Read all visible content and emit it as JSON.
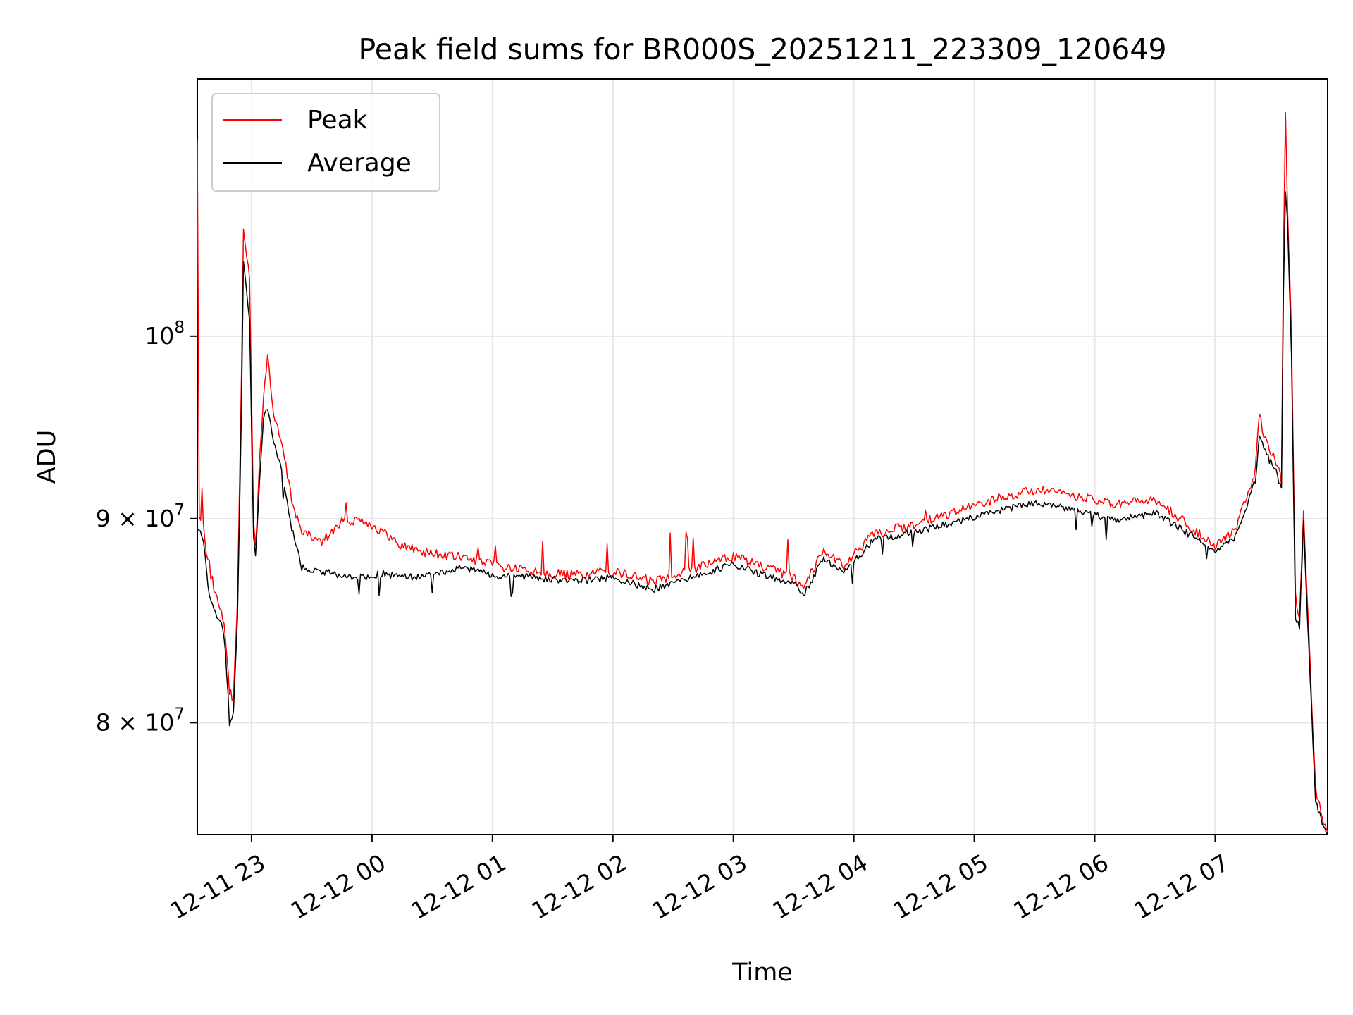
{
  "chart_data": {
    "type": "line",
    "title": "Peak field sums for BR000S_20251211_223309_120649",
    "xlabel": "Time",
    "ylabel": "ADU",
    "x_time_range": [
      "2025-12-11 22:33",
      "2025-12-12 07:56"
    ],
    "x_ticks": [
      {
        "time": "2025-12-11 23:00",
        "label": "12-11 23"
      },
      {
        "time": "2025-12-12 00:00",
        "label": "12-12 00"
      },
      {
        "time": "2025-12-12 01:00",
        "label": "12-12 01"
      },
      {
        "time": "2025-12-12 02:00",
        "label": "12-12 02"
      },
      {
        "time": "2025-12-12 03:00",
        "label": "12-12 03"
      },
      {
        "time": "2025-12-12 04:00",
        "label": "12-12 04"
      },
      {
        "time": "2025-12-12 05:00",
        "label": "12-12 05"
      },
      {
        "time": "2025-12-12 06:00",
        "label": "12-12 06"
      },
      {
        "time": "2025-12-12 07:00",
        "label": "12-12 07"
      }
    ],
    "y_scale": "log",
    "ylim": [
      75000000,
      116000000
    ],
    "y_ticks": [
      {
        "value": 80000000,
        "mantissa": "8",
        "base": "10",
        "exp": "7"
      },
      {
        "value": 90000000,
        "mantissa": "9",
        "base": "10",
        "exp": "7"
      },
      {
        "value": 100000000,
        "mantissa": "",
        "base": "10",
        "exp": "8"
      }
    ],
    "grid": true,
    "legend_position": "upper-left",
    "series": [
      {
        "name": "Peak",
        "color": "#ff0000",
        "points": [
          [
            "2025-12-11 22:33",
            112000000
          ],
          [
            "2025-12-11 22:34",
            90000000
          ],
          [
            "2025-12-11 22:36",
            89800000
          ],
          [
            "2025-12-11 22:39",
            87000000
          ],
          [
            "2025-12-11 22:42",
            86000000
          ],
          [
            "2025-12-11 22:45",
            85500000
          ],
          [
            "2025-12-11 22:47",
            84000000
          ],
          [
            "2025-12-11 22:49",
            81500000
          ],
          [
            "2025-12-11 22:51",
            81000000
          ],
          [
            "2025-12-11 22:53",
            86000000
          ],
          [
            "2025-12-11 22:55",
            98000000
          ],
          [
            "2025-12-11 22:56",
            106500000
          ],
          [
            "2025-12-11 22:57",
            105000000
          ],
          [
            "2025-12-11 22:59",
            103500000
          ],
          [
            "2025-12-11 23:01",
            90000000
          ],
          [
            "2025-12-11 23:02",
            88500000
          ],
          [
            "2025-12-11 23:04",
            93000000
          ],
          [
            "2025-12-11 23:06",
            96500000
          ],
          [
            "2025-12-11 23:08",
            99000000
          ],
          [
            "2025-12-11 23:11",
            95500000
          ],
          [
            "2025-12-11 23:15",
            94000000
          ],
          [
            "2025-12-11 23:20",
            91000000
          ],
          [
            "2025-12-11 23:25",
            89300000
          ],
          [
            "2025-12-11 23:35",
            88800000
          ],
          [
            "2025-12-11 23:45",
            89800000
          ],
          [
            "2025-12-11 23:55",
            90000000
          ],
          [
            "2025-12-12 00:05",
            89300000
          ],
          [
            "2025-12-12 00:15",
            88600000
          ],
          [
            "2025-12-12 00:30",
            88200000
          ],
          [
            "2025-12-12 00:45",
            88000000
          ],
          [
            "2025-12-12 01:00",
            87600000
          ],
          [
            "2025-12-12 01:20",
            87300000
          ],
          [
            "2025-12-12 01:40",
            87100000
          ],
          [
            "2025-12-12 02:00",
            87300000
          ],
          [
            "2025-12-12 02:20",
            86800000
          ],
          [
            "2025-12-12 02:40",
            87400000
          ],
          [
            "2025-12-12 03:00",
            88100000
          ],
          [
            "2025-12-12 03:15",
            87500000
          ],
          [
            "2025-12-12 03:30",
            87000000
          ],
          [
            "2025-12-12 03:35",
            86600000
          ],
          [
            "2025-12-12 03:45",
            88400000
          ],
          [
            "2025-12-12 03:55",
            87600000
          ],
          [
            "2025-12-12 04:10",
            89200000
          ],
          [
            "2025-12-12 04:30",
            89700000
          ],
          [
            "2025-12-12 04:50",
            90300000
          ],
          [
            "2025-12-12 05:10",
            91000000
          ],
          [
            "2025-12-12 05:30",
            91500000
          ],
          [
            "2025-12-12 05:50",
            91200000
          ],
          [
            "2025-12-12 06:10",
            90700000
          ],
          [
            "2025-12-12 06:30",
            91000000
          ],
          [
            "2025-12-12 06:50",
            89400000
          ],
          [
            "2025-12-12 07:00",
            88600000
          ],
          [
            "2025-12-12 07:10",
            89400000
          ],
          [
            "2025-12-12 07:20",
            92500000
          ],
          [
            "2025-12-12 07:22",
            95500000
          ],
          [
            "2025-12-12 07:25",
            94200000
          ],
          [
            "2025-12-12 07:31",
            92800000
          ],
          [
            "2025-12-12 07:33",
            92000000
          ],
          [
            "2025-12-12 07:34",
            105000000
          ],
          [
            "2025-12-12 07:35",
            114000000
          ],
          [
            "2025-12-12 07:36",
            108000000
          ],
          [
            "2025-12-12 07:38",
            100000000
          ],
          [
            "2025-12-12 07:40",
            86000000
          ],
          [
            "2025-12-12 07:42",
            85000000
          ],
          [
            "2025-12-12 07:44",
            90500000
          ],
          [
            "2025-12-12 07:46",
            85500000
          ],
          [
            "2025-12-12 07:50",
            77000000
          ],
          [
            "2025-12-12 07:54",
            75500000
          ],
          [
            "2025-12-12 07:56",
            75100000
          ]
        ]
      },
      {
        "name": "Average",
        "color": "#000000",
        "points": [
          [
            "2025-12-11 22:33",
            89500000
          ],
          [
            "2025-12-11 22:36",
            89000000
          ],
          [
            "2025-12-11 22:39",
            86000000
          ],
          [
            "2025-12-11 22:42",
            85200000
          ],
          [
            "2025-12-11 22:45",
            84800000
          ],
          [
            "2025-12-11 22:47",
            83500000
          ],
          [
            "2025-12-11 22:49",
            80000000
          ],
          [
            "2025-12-11 22:51",
            80500000
          ],
          [
            "2025-12-11 22:53",
            85000000
          ],
          [
            "2025-12-11 22:55",
            96000000
          ],
          [
            "2025-12-11 22:56",
            104500000
          ],
          [
            "2025-12-11 22:57",
            103500000
          ],
          [
            "2025-12-11 22:59",
            101000000
          ],
          [
            "2025-12-11 23:01",
            89000000
          ],
          [
            "2025-12-11 23:02",
            88000000
          ],
          [
            "2025-12-11 23:04",
            92000000
          ],
          [
            "2025-12-11 23:06",
            95500000
          ],
          [
            "2025-12-11 23:08",
            96000000
          ],
          [
            "2025-12-11 23:11",
            94000000
          ],
          [
            "2025-12-11 23:15",
            92500000
          ],
          [
            "2025-12-11 23:20",
            89500000
          ],
          [
            "2025-12-11 23:25",
            87500000
          ],
          [
            "2025-12-11 23:35",
            87300000
          ],
          [
            "2025-12-11 23:45",
            87100000
          ],
          [
            "2025-12-11 23:55",
            87000000
          ],
          [
            "2025-12-12 00:05",
            87200000
          ],
          [
            "2025-12-12 00:15",
            87000000
          ],
          [
            "2025-12-12 00:30",
            87100000
          ],
          [
            "2025-12-12 00:45",
            87500000
          ],
          [
            "2025-12-12 01:00",
            87100000
          ],
          [
            "2025-12-12 01:20",
            87000000
          ],
          [
            "2025-12-12 01:40",
            86800000
          ],
          [
            "2025-12-12 02:00",
            87000000
          ],
          [
            "2025-12-12 02:20",
            86400000
          ],
          [
            "2025-12-12 02:40",
            87000000
          ],
          [
            "2025-12-12 03:00",
            87700000
          ],
          [
            "2025-12-12 03:15",
            87100000
          ],
          [
            "2025-12-12 03:30",
            86700000
          ],
          [
            "2025-12-12 03:35",
            86100000
          ],
          [
            "2025-12-12 03:45",
            88000000
          ],
          [
            "2025-12-12 03:55",
            87200000
          ],
          [
            "2025-12-12 04:10",
            88900000
          ],
          [
            "2025-12-12 04:30",
            89300000
          ],
          [
            "2025-12-12 04:50",
            89800000
          ],
          [
            "2025-12-12 05:10",
            90400000
          ],
          [
            "2025-12-12 05:30",
            90800000
          ],
          [
            "2025-12-12 05:50",
            90500000
          ],
          [
            "2025-12-12 06:10",
            89900000
          ],
          [
            "2025-12-12 06:30",
            90300000
          ],
          [
            "2025-12-12 06:50",
            89000000
          ],
          [
            "2025-12-12 07:00",
            88300000
          ],
          [
            "2025-12-12 07:10",
            89000000
          ],
          [
            "2025-12-12 07:20",
            92000000
          ],
          [
            "2025-12-12 07:22",
            94300000
          ],
          [
            "2025-12-12 07:25",
            93500000
          ],
          [
            "2025-12-12 07:31",
            92300000
          ],
          [
            "2025-12-12 07:33",
            91500000
          ],
          [
            "2025-12-12 07:34",
            102500000
          ],
          [
            "2025-12-12 07:35",
            108500000
          ],
          [
            "2025-12-12 07:36",
            107000000
          ],
          [
            "2025-12-12 07:38",
            99000000
          ],
          [
            "2025-12-12 07:40",
            85000000
          ],
          [
            "2025-12-12 07:42",
            84500000
          ],
          [
            "2025-12-12 07:44",
            89800000
          ],
          [
            "2025-12-12 07:46",
            85000000
          ],
          [
            "2025-12-12 07:50",
            76500000
          ],
          [
            "2025-12-12 07:54",
            75200000
          ],
          [
            "2025-12-12 07:56",
            75000000
          ]
        ]
      }
    ]
  }
}
